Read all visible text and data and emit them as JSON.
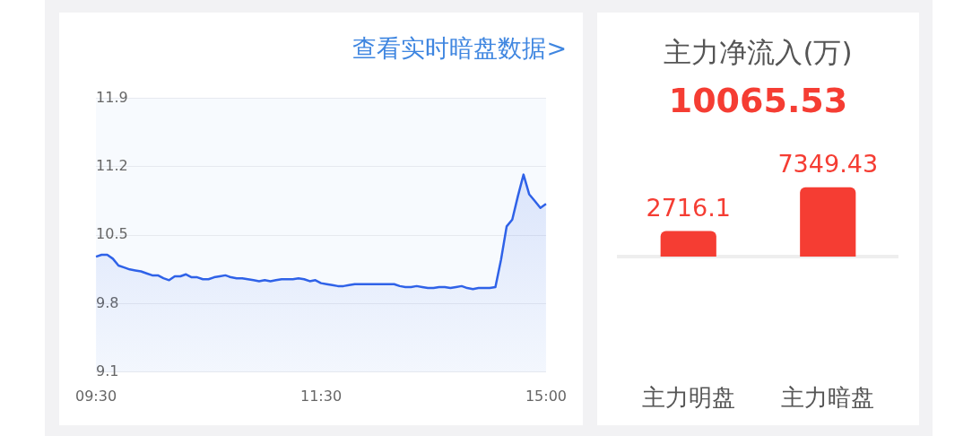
{
  "chart_data": [
    {
      "type": "area",
      "annotations": [
        "查看实时暗盘数据>"
      ],
      "categories": [
        "09:30",
        null,
        null,
        null,
        null,
        null,
        null,
        null,
        null,
        null,
        null,
        null,
        null,
        null,
        null,
        null,
        null,
        null,
        null,
        null,
        null,
        null,
        null,
        null,
        null,
        null,
        null,
        null,
        null,
        null,
        null,
        null,
        null,
        null,
        null,
        null,
        null,
        null,
        null,
        null,
        "11:30",
        null,
        null,
        null,
        null,
        null,
        null,
        null,
        null,
        null,
        null,
        null,
        null,
        null,
        null,
        null,
        null,
        null,
        null,
        null,
        null,
        null,
        null,
        null,
        null,
        null,
        null,
        null,
        null,
        null,
        null,
        null,
        null,
        null,
        null,
        null,
        null,
        null,
        null,
        null,
        "15:00"
      ],
      "series": [
        {
          "color": "#2f62e8",
          "values": [
            10.28,
            10.3,
            10.3,
            10.26,
            10.19,
            10.17,
            10.15,
            10.14,
            10.13,
            10.11,
            10.09,
            10.09,
            10.06,
            10.04,
            10.08,
            10.08,
            10.1,
            10.07,
            10.07,
            10.05,
            10.05,
            10.07,
            10.08,
            10.09,
            10.07,
            10.06,
            10.06,
            10.05,
            10.04,
            10.03,
            10.04,
            10.03,
            10.04,
            10.05,
            10.05,
            10.05,
            10.06,
            10.05,
            10.03,
            10.04,
            10.01,
            10.0,
            9.99,
            9.98,
            9.98,
            9.99,
            10.0,
            10.0,
            10.0,
            10.0,
            10.0,
            10.0,
            10.0,
            10.0,
            9.98,
            9.97,
            9.97,
            9.98,
            9.97,
            9.96,
            9.96,
            9.97,
            9.97,
            9.96,
            9.97,
            9.98,
            9.96,
            9.95,
            9.96,
            9.96,
            9.96,
            9.97,
            10.25,
            10.59,
            10.66,
            10.9,
            11.12,
            10.92,
            10.85,
            10.78,
            10.82
          ]
        }
      ],
      "ylim": [
        9.1,
        11.9
      ],
      "yticks": [
        9.1,
        9.8,
        10.5,
        11.2,
        11.9
      ],
      "grid": "y",
      "marker": "none"
    },
    {
      "type": "bar",
      "title": "主力净流入(万)",
      "subtitle": "10065.53",
      "categories": [
        "主力明盘",
        "主力暗盘"
      ],
      "values": [
        2716.1,
        7349.43
      ],
      "color": "#f53d33",
      "data_labels": true
    }
  ]
}
